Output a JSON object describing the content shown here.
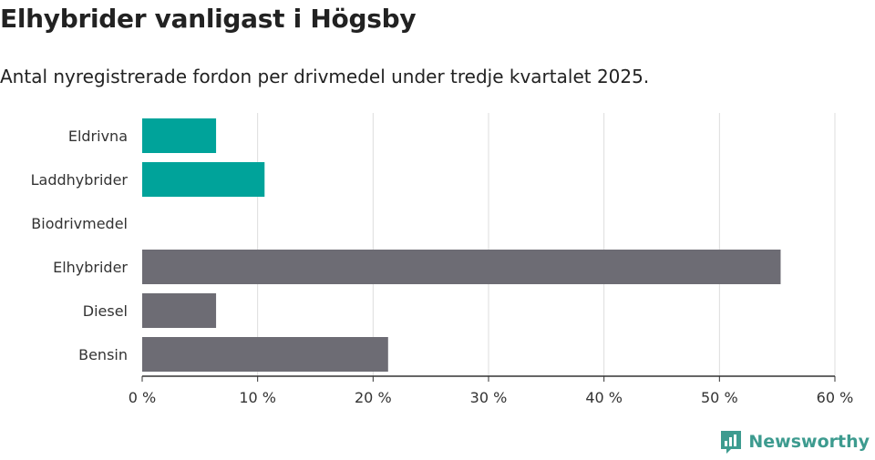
{
  "header": {
    "title": "Elhybrider vanligast i Högsby",
    "subtitle": "Antal nyregistrerade fordon per drivmedel under tredje kvartalet 2025."
  },
  "brand": {
    "name": "Newsworthy",
    "icon": "newsworthy-logo-icon",
    "color": "#3d9b8f"
  },
  "chart_data": {
    "type": "bar",
    "orientation": "horizontal",
    "categories": [
      "Eldrivna",
      "Laddhybrider",
      "Biodrivmedel",
      "Elhybrider",
      "Diesel",
      "Bensin"
    ],
    "values": [
      6.4,
      10.6,
      0,
      55.3,
      6.4,
      21.3
    ],
    "colors": [
      "#00a39a",
      "#00a39a",
      "#00a39a",
      "#6d6c74",
      "#6d6c74",
      "#6d6c74"
    ],
    "ticks": [
      "0 %",
      "10 %",
      "20 %",
      "30 %",
      "40 %",
      "50 %",
      "60 %"
    ],
    "tick_values": [
      0,
      10,
      20,
      30,
      40,
      50,
      60
    ],
    "xlim": [
      0,
      60
    ],
    "grid": true
  }
}
